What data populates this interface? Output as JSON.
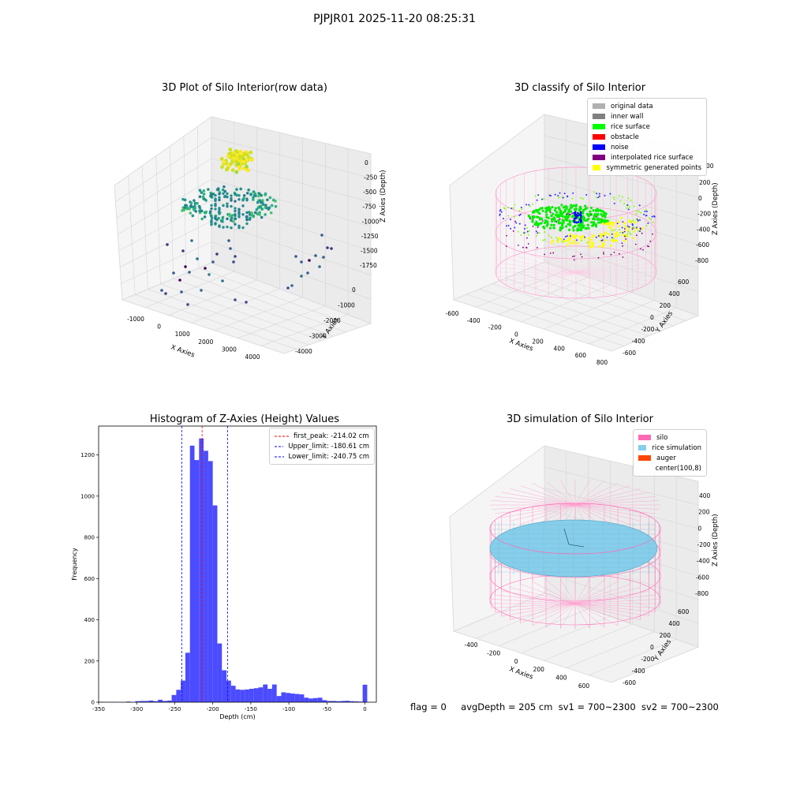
{
  "suptitle": "PJPJR01 2025-11-20 08:25:31",
  "panels": {
    "raw": {
      "title": "3D Plot of Silo Interior(row data)",
      "xlabel": "X Axies",
      "ylabel": "Y Axies",
      "zlabel": "Z Axies (Depth)",
      "x_ticks": [
        "-1000",
        "0",
        "1000",
        "2000",
        "3000",
        "4000"
      ],
      "y_ticks": [
        "0",
        "-1000",
        "-2000",
        "-3000",
        "-4000"
      ],
      "z_ticks": [
        "0",
        "-250",
        "-500",
        "-750",
        "-1000",
        "-1250",
        "-1500",
        "-1750"
      ]
    },
    "classify": {
      "title": "3D classify of Silo Interior",
      "xlabel": "X Axies",
      "ylabel": "Y Axies",
      "zlabel": "Z Axies (Depth)",
      "x_ticks": [
        "-600",
        "-400",
        "-200",
        "0",
        "200",
        "400",
        "600",
        "800"
      ],
      "y_ticks": [
        "600",
        "400",
        "200",
        "0",
        "-200",
        "-400",
        "-600"
      ],
      "z_ticks": [
        "200",
        "0",
        "-200",
        "-400",
        "-600",
        "-800"
      ],
      "z_top_partial": "00",
      "legend": [
        {
          "label": "original data",
          "color": "#b0b0b0"
        },
        {
          "label": "inner wall",
          "color": "#808080"
        },
        {
          "label": "rice surface",
          "color": "#00ff00"
        },
        {
          "label": "obstacle",
          "color": "#ff0000"
        },
        {
          "label": "noise",
          "color": "#0000ff"
        },
        {
          "label": "interpolated rice surface",
          "color": "#800080"
        },
        {
          "label": "symmetric generated points",
          "color": "#ffff00"
        }
      ]
    },
    "histogram": {
      "title": "Histogram of Z-Axies (Height) Values",
      "xlabel": "Depth (cm)",
      "ylabel": "Frequency",
      "legend": [
        {
          "label": "first_peak: -214.02 cm",
          "color": "#ff0000"
        },
        {
          "label": "Upper_limit: -180.61 cm",
          "color": "#0000ff"
        },
        {
          "label": "Lower_limit: -240.75 cm",
          "color": "#0000ff"
        }
      ]
    },
    "simulation": {
      "title": "3D simulation of Silo Interior",
      "xlabel": "X Axies",
      "ylabel": "Y Axies",
      "zlabel": "Z Axies (Depth)",
      "x_ticks": [
        "-400",
        "-200",
        "0",
        "200",
        "400",
        "600"
      ],
      "y_ticks": [
        "600",
        "400",
        "200",
        "0",
        "-200",
        "-400",
        "-600"
      ],
      "z_ticks": [
        "400",
        "200",
        "0",
        "-200",
        "-400",
        "-600",
        "-800"
      ],
      "legend": [
        {
          "label": "silo",
          "color": "#ff69b4"
        },
        {
          "label": "rice simulation",
          "color": "#87ceeb"
        },
        {
          "label": "auger",
          "color": "#ff4500"
        },
        {
          "label": "center(100,8)",
          "color": ""
        }
      ]
    }
  },
  "footer": {
    "flag": "flag = 0",
    "avg_depth": "avgDepth = 205 cm",
    "sv1": "sv1 = 700~2300",
    "sv2": "sv2 = 700~2300"
  },
  "chart_data": {
    "type": "bar",
    "title": "Histogram of Z-Axies (Height) Values",
    "xlabel": "Depth (cm)",
    "ylabel": "Frequency",
    "xlim": [
      -350,
      15
    ],
    "ylim": [
      0,
      1340
    ],
    "xticks": [
      -350,
      -300,
      -250,
      -200,
      -150,
      -100,
      -50,
      0
    ],
    "yticks": [
      0,
      200,
      400,
      600,
      800,
      1000,
      1200
    ],
    "bin_width": 6,
    "bins": [
      [
        -350,
        2
      ],
      [
        -335,
        1
      ],
      [
        -314,
        3
      ],
      [
        -302,
        5
      ],
      [
        -296,
        6
      ],
      [
        -290,
        6
      ],
      [
        -284,
        8
      ],
      [
        -278,
        5
      ],
      [
        -272,
        12
      ],
      [
        -266,
        6
      ],
      [
        -260,
        8
      ],
      [
        -254,
        35
      ],
      [
        -248,
        60
      ],
      [
        -242,
        105
      ],
      [
        -236,
        240
      ],
      [
        -230,
        1245
      ],
      [
        -224,
        1175
      ],
      [
        -218,
        1280
      ],
      [
        -212,
        1220
      ],
      [
        -206,
        1170
      ],
      [
        -200,
        955
      ],
      [
        -194,
        285
      ],
      [
        -188,
        155
      ],
      [
        -182,
        105
      ],
      [
        -176,
        80
      ],
      [
        -170,
        62
      ],
      [
        -164,
        60
      ],
      [
        -158,
        62
      ],
      [
        -152,
        65
      ],
      [
        -146,
        68
      ],
      [
        -140,
        72
      ],
      [
        -134,
        86
      ],
      [
        -128,
        65
      ],
      [
        -122,
        86
      ],
      [
        -116,
        30
      ],
      [
        -110,
        48
      ],
      [
        -104,
        45
      ],
      [
        -98,
        42
      ],
      [
        -92,
        40
      ],
      [
        -86,
        38
      ],
      [
        -80,
        22
      ],
      [
        -74,
        18
      ],
      [
        -68,
        20
      ],
      [
        -62,
        22
      ],
      [
        -56,
        10
      ],
      [
        -50,
        6
      ],
      [
        -44,
        6
      ],
      [
        -38,
        5
      ],
      [
        -32,
        6
      ],
      [
        -26,
        7
      ],
      [
        -20,
        5
      ],
      [
        -14,
        4
      ],
      [
        -8,
        3
      ],
      [
        -3,
        85
      ]
    ],
    "vlines": [
      {
        "label": "first_peak: -214.02 cm",
        "x": -214.02,
        "color": "#ff0000"
      },
      {
        "label": "Upper_limit: -180.61 cm",
        "x": -180.61,
        "color": "#0000ff"
      },
      {
        "label": "Lower_limit: -240.75 cm",
        "x": -240.75,
        "color": "#0000ff"
      }
    ],
    "bar_color": "#4b4bff",
    "legend_position": "top-right"
  }
}
